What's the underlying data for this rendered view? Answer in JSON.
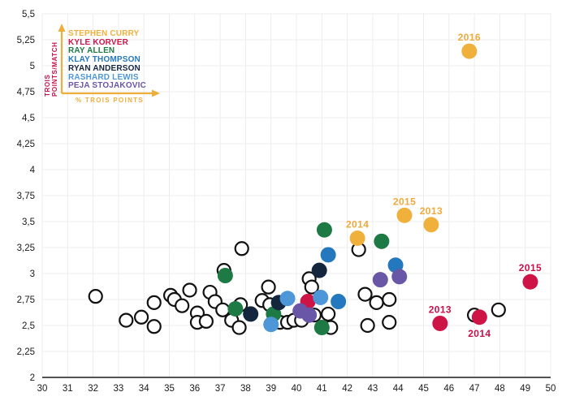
{
  "colors": {
    "background": "#ffffff",
    "grid": "#ececec",
    "axis_line": "#1a1a1a",
    "tick_text": "#1a1a1a",
    "accent_gold": "#efae3c",
    "accent_crimson": "#c8104b",
    "open_point_stroke": "#111111",
    "open_point_fill": "#ffffff"
  },
  "chart_data": {
    "type": "scatter",
    "title": "",
    "xlabel": "% TROIS POINTS",
    "ylabel": "TROIS POINTS/MATCH",
    "xlim": [
      30,
      50
    ],
    "ylim": [
      2,
      5.5
    ],
    "grid": true,
    "legend_position": "top-left",
    "x_ticks": [
      30,
      31,
      32,
      33,
      34,
      35,
      36,
      37,
      38,
      39,
      40,
      41,
      42,
      43,
      44,
      45,
      46,
      47,
      48,
      49,
      50
    ],
    "x_tick_labels": [
      "30",
      "31",
      "32",
      "33",
      "34",
      "35",
      "36",
      "37",
      "38",
      "39",
      "40",
      "41",
      "42",
      "43",
      "44",
      "45",
      "46",
      "47",
      "48",
      "49",
      "50"
    ],
    "y_ticks": [
      2,
      2.25,
      2.5,
      2.75,
      3,
      3.25,
      3.5,
      3.75,
      4,
      4.25,
      4.5,
      4.75,
      5,
      5.25,
      5.5
    ],
    "y_tick_labels": [
      "2",
      "2,25",
      "2,5",
      "2,75",
      "3",
      "3,25",
      "3,5",
      "3,75",
      "4",
      "4,25",
      "4,5",
      "4,75",
      "5",
      "5,25",
      "5,5"
    ],
    "series": [
      {
        "id": "other-players",
        "name": "",
        "in_legend": false,
        "style": "open",
        "color": "#ffffff",
        "stroke": "#111111",
        "points": [
          [
            32.1,
            2.78
          ],
          [
            33.3,
            2.55
          ],
          [
            33.9,
            2.58
          ],
          [
            34.4,
            2.72
          ],
          [
            34.4,
            2.49
          ],
          [
            35.05,
            2.79
          ],
          [
            35.2,
            2.75
          ],
          [
            35.5,
            2.69
          ],
          [
            35.8,
            2.84
          ],
          [
            36.1,
            2.62
          ],
          [
            36.1,
            2.53
          ],
          [
            36.45,
            2.54
          ],
          [
            36.6,
            2.82
          ],
          [
            36.8,
            2.73
          ],
          [
            37.1,
            2.65
          ],
          [
            37.15,
            3.03
          ],
          [
            37.85,
            3.24
          ],
          [
            37.8,
            2.7
          ],
          [
            37.45,
            2.55
          ],
          [
            37.75,
            2.48
          ],
          [
            38.65,
            2.74
          ],
          [
            38.9,
            2.87
          ],
          [
            38.95,
            2.7
          ],
          [
            39.35,
            2.53
          ],
          [
            39.65,
            2.53
          ],
          [
            39.9,
            2.55
          ],
          [
            40.2,
            2.55
          ],
          [
            40.5,
            2.95
          ],
          [
            40.6,
            2.87
          ],
          [
            40.7,
            2.6
          ],
          [
            41.25,
            2.61
          ],
          [
            41.35,
            2.48
          ],
          [
            42.45,
            3.23
          ],
          [
            42.7,
            2.8
          ],
          [
            43.15,
            2.72
          ],
          [
            43.65,
            2.75
          ],
          [
            42.8,
            2.5
          ],
          [
            43.65,
            2.53
          ],
          [
            47.0,
            2.6
          ],
          [
            47.95,
            2.65
          ]
        ]
      },
      {
        "id": "stephen-curry",
        "name": "STEPHEN CURRY",
        "in_legend": true,
        "style": "filled",
        "color": "#f0b13c",
        "label_color": "#efa93c",
        "points": [
          {
            "x": 42.4,
            "y": 3.34,
            "label": "2014",
            "label_pos": "above"
          },
          {
            "x": 44.25,
            "y": 3.56,
            "label": "2015",
            "label_pos": "above"
          },
          {
            "x": 45.3,
            "y": 3.47,
            "label": "2013",
            "label_pos": "above"
          },
          {
            "x": 46.8,
            "y": 5.14,
            "label": "2016",
            "label_pos": "above"
          }
        ]
      },
      {
        "id": "kyle-korver",
        "name": "KYLE KORVER",
        "in_legend": true,
        "style": "filled",
        "color": "#ce1347",
        "label_color": "#c8104b",
        "points": [
          {
            "x": 40.45,
            "y": 2.73
          },
          {
            "x": 45.65,
            "y": 2.52,
            "label": "2013",
            "label_pos": "above"
          },
          {
            "x": 47.2,
            "y": 2.58,
            "label": "2014",
            "label_pos": "below"
          },
          {
            "x": 49.2,
            "y": 2.92,
            "label": "2015",
            "label_pos": "above"
          }
        ]
      },
      {
        "id": "ray-allen",
        "name": "RAY ALLEN",
        "in_legend": true,
        "style": "filled",
        "color": "#1e7a45",
        "points": [
          [
            37.2,
            2.98
          ],
          [
            37.6,
            2.66
          ],
          [
            39.1,
            2.61
          ],
          [
            41.0,
            2.48
          ],
          [
            41.1,
            3.42
          ],
          [
            43.35,
            3.31
          ]
        ]
      },
      {
        "id": "klay-thompson",
        "name": "KLAY THOMPSON",
        "in_legend": true,
        "style": "filled",
        "color": "#2478be",
        "points": [
          [
            41.25,
            3.18
          ],
          [
            41.65,
            2.73
          ],
          [
            43.9,
            3.08
          ]
        ]
      },
      {
        "id": "ryan-anderson",
        "name": "RYAN ANDERSON",
        "in_legend": true,
        "style": "filled",
        "color": "#14263e",
        "points": [
          [
            38.2,
            2.61
          ],
          [
            39.3,
            2.72
          ],
          [
            40.9,
            3.03
          ]
        ]
      },
      {
        "id": "rashard-lewis",
        "name": "RASHARD LEWIS",
        "in_legend": true,
        "style": "filled",
        "color": "#4d97d9",
        "points": [
          [
            39.0,
            2.51
          ],
          [
            39.65,
            2.76
          ],
          [
            40.95,
            2.77
          ]
        ]
      },
      {
        "id": "peja-stojakovic",
        "name": "PEJA STOJAKOVIC",
        "in_legend": true,
        "style": "filled",
        "color": "#6a56a7",
        "points": [
          [
            40.15,
            2.64
          ],
          [
            40.5,
            2.6
          ],
          [
            43.3,
            2.94
          ],
          [
            44.05,
            2.97
          ]
        ]
      }
    ]
  }
}
